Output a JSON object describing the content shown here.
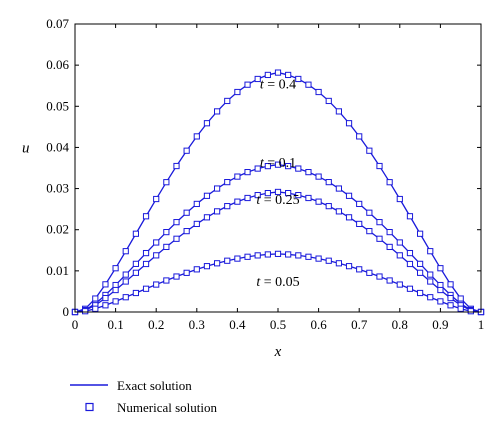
{
  "chart_data": {
    "type": "line",
    "xlabel": "x",
    "ylabel": "u",
    "xlim": [
      0,
      1
    ],
    "ylim": [
      0,
      0.07
    ],
    "x_ticks": [
      "0",
      "0.1",
      "0.2",
      "0.3",
      "0.4",
      "0.5",
      "0.6",
      "0.7",
      "0.8",
      "0.9",
      "1"
    ],
    "y_ticks": [
      "0",
      "0.01",
      "0.02",
      "0.03",
      "0.04",
      "0.05",
      "0.06",
      "0.07"
    ],
    "grid": false,
    "legend_position": "bottom-left",
    "line_color": "#1a1adb",
    "annotations": [
      {
        "text_prefix": "t",
        "text_value": " = 0.4",
        "x": 0.5,
        "y": 0.0555
      },
      {
        "text_prefix": "t",
        "text_value": " = 0.1",
        "x": 0.5,
        "y": 0.0365
      },
      {
        "text_prefix": "t",
        "text_value": " = 0.25",
        "x": 0.5,
        "y": 0.0275
      },
      {
        "text_prefix": "t",
        "text_value": " = 0.05",
        "x": 0.5,
        "y": 0.0075
      }
    ],
    "series_x": [
      0,
      0.025,
      0.05,
      0.075,
      0.1,
      0.125,
      0.15,
      0.175,
      0.2,
      0.225,
      0.25,
      0.275,
      0.3,
      0.325,
      0.35,
      0.375,
      0.4,
      0.425,
      0.45,
      0.475,
      0.5,
      0.525,
      0.55,
      0.575,
      0.6,
      0.625,
      0.65,
      0.675,
      0.7,
      0.725,
      0.75,
      0.775,
      0.8,
      0.825,
      0.85,
      0.875,
      0.9,
      0.925,
      0.95,
      0.975,
      1
    ],
    "series": [
      {
        "t": "0.4",
        "values": [
          0,
          0.00078,
          0.00327,
          0.00672,
          0.01064,
          0.01478,
          0.01902,
          0.02327,
          0.02746,
          0.03155,
          0.03548,
          0.0392,
          0.04268,
          0.04588,
          0.04876,
          0.0513,
          0.05347,
          0.05525,
          0.05664,
          0.05762,
          0.05819,
          0.05762,
          0.05664,
          0.05525,
          0.05347,
          0.0513,
          0.04876,
          0.04588,
          0.04268,
          0.0392,
          0.03548,
          0.03155,
          0.02746,
          0.02327,
          0.01902,
          0.01478,
          0.01064,
          0.00672,
          0.00327,
          0.00078,
          0
        ]
      },
      {
        "t": "0.1",
        "values": [
          0,
          0.00048,
          0.00201,
          0.00414,
          0.00655,
          0.00909,
          0.0117,
          0.01432,
          0.0169,
          0.01942,
          0.02184,
          0.02413,
          0.02627,
          0.02824,
          0.03001,
          0.03157,
          0.03291,
          0.034,
          0.03486,
          0.03546,
          0.03581,
          0.03546,
          0.03486,
          0.034,
          0.03291,
          0.03157,
          0.03001,
          0.02824,
          0.02627,
          0.02413,
          0.02184,
          0.01942,
          0.0169,
          0.01432,
          0.0117,
          0.00909,
          0.00655,
          0.00414,
          0.00201,
          0.00048,
          0
        ]
      },
      {
        "t": "0.25",
        "values": [
          0,
          0.00039,
          0.00164,
          0.00338,
          0.00534,
          0.00741,
          0.00953,
          0.01167,
          0.01377,
          0.01582,
          0.0178,
          0.01966,
          0.02141,
          0.02301,
          0.02446,
          0.02573,
          0.02682,
          0.02771,
          0.02841,
          0.0289,
          0.02918,
          0.0289,
          0.02841,
          0.02771,
          0.02682,
          0.02573,
          0.02446,
          0.02301,
          0.02141,
          0.01966,
          0.0178,
          0.01582,
          0.01377,
          0.01167,
          0.00953,
          0.00741,
          0.00534,
          0.00338,
          0.00164,
          0.00039,
          0
        ]
      },
      {
        "t": "0.05",
        "values": [
          0,
          0.00019,
          0.00079,
          0.00163,
          0.00258,
          0.00359,
          0.00462,
          0.00565,
          0.00667,
          0.00766,
          0.00862,
          0.00952,
          0.01037,
          0.01114,
          0.01184,
          0.01246,
          0.01298,
          0.01342,
          0.01376,
          0.01399,
          0.01413,
          0.01399,
          0.01376,
          0.01342,
          0.01298,
          0.01246,
          0.01184,
          0.01114,
          0.01037,
          0.00952,
          0.00862,
          0.00766,
          0.00667,
          0.00565,
          0.00462,
          0.00359,
          0.00258,
          0.00163,
          0.00079,
          0.00019,
          0
        ]
      }
    ],
    "legend": [
      {
        "label": "Exact solution",
        "marker": "line"
      },
      {
        "label": "Numerical solution",
        "marker": "square"
      }
    ]
  }
}
